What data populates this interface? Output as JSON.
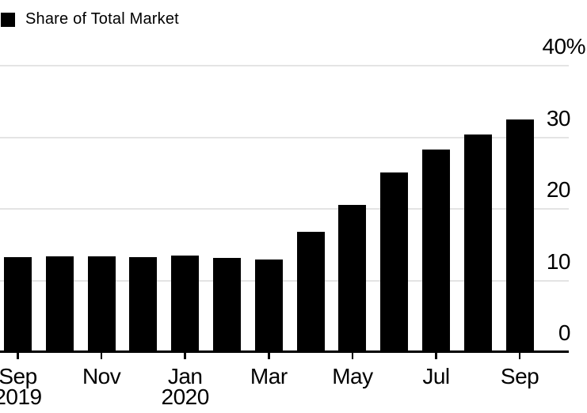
{
  "chart_data": {
    "type": "bar",
    "title": "",
    "legend": [
      {
        "label": "Share of Total Market",
        "color": "#000000"
      }
    ],
    "legend_position": "top-left",
    "categories": [
      "Sep 2019",
      "Oct 2019",
      "Nov 2019",
      "Dec 2019",
      "Jan 2020",
      "Feb 2020",
      "Mar 2020",
      "Apr 2020",
      "May 2020",
      "Jun 2020",
      "Jul 2020",
      "Aug 2020",
      "Sep 2020"
    ],
    "values": [
      13.3,
      13.4,
      13.4,
      13.3,
      13.5,
      13.2,
      12.9,
      16.8,
      20.5,
      25.1,
      28.3,
      30.4,
      32.5
    ],
    "xlabel": "",
    "ylabel": "",
    "ylim": [
      0,
      40
    ],
    "grid": true,
    "yticks": [
      {
        "value": 0,
        "label": "0"
      },
      {
        "value": 10,
        "label": "10"
      },
      {
        "value": 20,
        "label": "20"
      },
      {
        "value": 30,
        "label": "30"
      },
      {
        "value": 40,
        "label": "40%"
      }
    ],
    "xticks": [
      {
        "bar_index": 0,
        "label": "Sep",
        "sub": "2019"
      },
      {
        "bar_index": 2,
        "label": "Nov",
        "sub": ""
      },
      {
        "bar_index": 4,
        "label": "Jan",
        "sub": "2020"
      },
      {
        "bar_index": 6,
        "label": "Mar",
        "sub": ""
      },
      {
        "bar_index": 8,
        "label": "May",
        "sub": ""
      },
      {
        "bar_index": 10,
        "label": "Jul",
        "sub": ""
      },
      {
        "bar_index": 12,
        "label": "Sep",
        "sub": ""
      }
    ],
    "bar_color": "#000000",
    "gridline_color": "#e4e4e4",
    "axis_color": "#000000",
    "text_color": "#000000",
    "background": "#ffffff"
  }
}
